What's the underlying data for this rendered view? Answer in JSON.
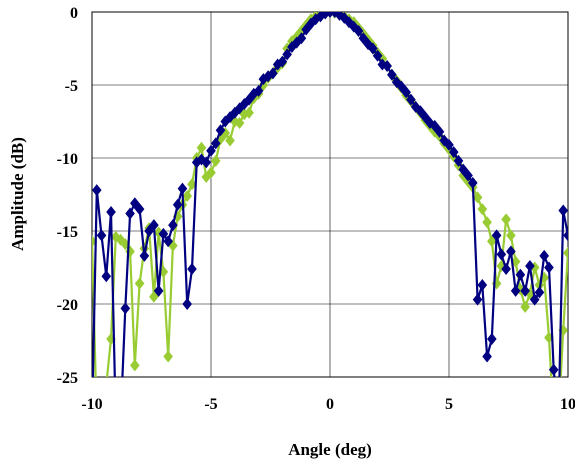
{
  "chart_data": {
    "type": "line",
    "title": "",
    "xlabel": "Angle (deg)",
    "ylabel": "Amplitude (dB)",
    "xlim": [
      -10,
      10
    ],
    "ylim": [
      -25,
      0
    ],
    "x_ticks": [
      -10,
      -5,
      0,
      5,
      10
    ],
    "y_ticks": [
      0,
      -5,
      -10,
      -15,
      -20,
      -25
    ],
    "x_tick_labels": [
      "-10",
      "-5",
      "0",
      "5",
      "10"
    ],
    "y_tick_labels": [
      "0",
      "-5",
      "-10",
      "-15",
      "-20",
      "-25"
    ],
    "grid": true,
    "legend": "none",
    "series": [
      {
        "color": "#99cc33",
        "marker": "diamond",
        "points": [
          [
            -10.0,
            -15.7
          ],
          [
            -9.8,
            -28.0
          ],
          [
            -9.6,
            -28.0
          ],
          [
            -9.4,
            -25.5
          ],
          [
            -9.2,
            -22.4
          ],
          [
            -9.0,
            -15.4
          ],
          [
            -8.8,
            -15.6
          ],
          [
            -8.6,
            -15.9
          ],
          [
            -8.4,
            -16.4
          ],
          [
            -8.2,
            -24.2
          ],
          [
            -8.0,
            -18.6
          ],
          [
            -7.8,
            -16.2
          ],
          [
            -7.6,
            -14.8
          ],
          [
            -7.4,
            -19.5
          ],
          [
            -7.2,
            -15.1
          ],
          [
            -7.0,
            -17.8
          ],
          [
            -6.8,
            -23.6
          ],
          [
            -6.6,
            -16.0
          ],
          [
            -6.4,
            -14.0
          ],
          [
            -6.2,
            -13.2
          ],
          [
            -6.0,
            -12.6
          ],
          [
            -5.8,
            -11.8
          ],
          [
            -5.6,
            -10.0
          ],
          [
            -5.4,
            -9.3
          ],
          [
            -5.2,
            -11.3
          ],
          [
            -5.0,
            -11.0
          ],
          [
            -4.8,
            -10.2
          ],
          [
            -4.6,
            -8.7
          ],
          [
            -4.4,
            -8.3
          ],
          [
            -4.2,
            -8.8
          ],
          [
            -4.0,
            -7.5
          ],
          [
            -3.8,
            -7.6
          ],
          [
            -3.6,
            -7.0
          ],
          [
            -3.4,
            -6.9
          ],
          [
            -3.2,
            -5.9
          ],
          [
            -3.0,
            -5.6
          ],
          [
            -2.8,
            -5.0
          ],
          [
            -2.6,
            -4.5
          ],
          [
            -2.4,
            -4.2
          ],
          [
            -2.2,
            -3.8
          ],
          [
            -2.0,
            -3.5
          ],
          [
            -1.8,
            -2.5
          ],
          [
            -1.6,
            -2.0
          ],
          [
            -1.4,
            -1.7
          ],
          [
            -1.2,
            -1.3
          ],
          [
            -1.0,
            -0.9
          ],
          [
            -0.8,
            -0.5
          ],
          [
            -0.6,
            -0.3
          ],
          [
            -0.4,
            -0.2
          ],
          [
            -0.2,
            -0.05
          ],
          [
            0.0,
            0.0
          ],
          [
            0.2,
            -0.05
          ],
          [
            0.4,
            -0.2
          ],
          [
            0.6,
            -0.3
          ],
          [
            0.8,
            -0.5
          ],
          [
            1.0,
            -0.7
          ],
          [
            1.2,
            -1.1
          ],
          [
            1.4,
            -1.5
          ],
          [
            1.6,
            -1.9
          ],
          [
            1.8,
            -2.3
          ],
          [
            2.0,
            -2.8
          ],
          [
            2.2,
            -3.2
          ],
          [
            2.4,
            -3.7
          ],
          [
            2.6,
            -4.3
          ],
          [
            2.8,
            -4.7
          ],
          [
            3.0,
            -5.2
          ],
          [
            3.2,
            -5.7
          ],
          [
            3.4,
            -6.1
          ],
          [
            3.6,
            -6.5
          ],
          [
            3.8,
            -6.9
          ],
          [
            4.0,
            -7.4
          ],
          [
            4.2,
            -7.8
          ],
          [
            4.4,
            -8.2
          ],
          [
            4.6,
            -8.5
          ],
          [
            4.8,
            -9.0
          ],
          [
            5.0,
            -9.4
          ],
          [
            5.2,
            -9.9
          ],
          [
            5.4,
            -10.5
          ],
          [
            5.6,
            -11.2
          ],
          [
            5.8,
            -11.6
          ],
          [
            6.0,
            -12.0
          ],
          [
            6.2,
            -12.7
          ],
          [
            6.4,
            -13.5
          ],
          [
            6.6,
            -14.4
          ],
          [
            6.8,
            -15.7
          ],
          [
            7.0,
            -18.6
          ],
          [
            7.2,
            -17.4
          ],
          [
            7.4,
            -14.2
          ],
          [
            7.6,
            -15.3
          ],
          [
            7.8,
            -17.1
          ],
          [
            8.0,
            -19.0
          ],
          [
            8.2,
            -20.2
          ],
          [
            8.4,
            -19.3
          ],
          [
            8.6,
            -17.5
          ],
          [
            8.8,
            -18.7
          ],
          [
            9.0,
            -18.2
          ],
          [
            9.2,
            -22.3
          ],
          [
            9.4,
            -28.0
          ],
          [
            9.6,
            -28.0
          ],
          [
            9.8,
            -21.8
          ],
          [
            10.0,
            -16.5
          ]
        ]
      },
      {
        "color": "#000080",
        "marker": "diamond",
        "points": [
          [
            -10.0,
            -28.0
          ],
          [
            -9.8,
            -12.2
          ],
          [
            -9.6,
            -15.3
          ],
          [
            -9.4,
            -18.1
          ],
          [
            -9.2,
            -13.7
          ],
          [
            -9.0,
            -28.0
          ],
          [
            -8.8,
            -28.0
          ],
          [
            -8.6,
            -20.3
          ],
          [
            -8.4,
            -13.8
          ],
          [
            -8.2,
            -13.1
          ],
          [
            -8.0,
            -13.5
          ],
          [
            -7.8,
            -16.7
          ],
          [
            -7.6,
            -15.0
          ],
          [
            -7.4,
            -14.6
          ],
          [
            -7.2,
            -19.1
          ],
          [
            -7.0,
            -15.2
          ],
          [
            -6.8,
            -15.7
          ],
          [
            -6.6,
            -14.6
          ],
          [
            -6.4,
            -13.2
          ],
          [
            -6.2,
            -12.1
          ],
          [
            -6.0,
            -20.0
          ],
          [
            -5.8,
            -17.6
          ],
          [
            -5.6,
            -10.3
          ],
          [
            -5.4,
            -10.1
          ],
          [
            -5.2,
            -10.3
          ],
          [
            -5.0,
            -9.5
          ],
          [
            -4.8,
            -9.0
          ],
          [
            -4.6,
            -8.1
          ],
          [
            -4.4,
            -7.5
          ],
          [
            -4.2,
            -7.2
          ],
          [
            -4.0,
            -6.9
          ],
          [
            -3.8,
            -6.6
          ],
          [
            -3.6,
            -6.3
          ],
          [
            -3.4,
            -6.0
          ],
          [
            -3.2,
            -5.6
          ],
          [
            -3.0,
            -5.4
          ],
          [
            -2.8,
            -4.6
          ],
          [
            -2.6,
            -4.4
          ],
          [
            -2.4,
            -4.2
          ],
          [
            -2.2,
            -3.6
          ],
          [
            -2.0,
            -3.4
          ],
          [
            -1.8,
            -2.9
          ],
          [
            -1.6,
            -2.4
          ],
          [
            -1.4,
            -2.1
          ],
          [
            -1.2,
            -1.8
          ],
          [
            -1.0,
            -1.2
          ],
          [
            -0.8,
            -0.8
          ],
          [
            -0.6,
            -0.5
          ],
          [
            -0.4,
            -0.3
          ],
          [
            -0.2,
            -0.1
          ],
          [
            0.0,
            0.0
          ],
          [
            0.2,
            0.0
          ],
          [
            0.4,
            -0.2
          ],
          [
            0.6,
            -0.4
          ],
          [
            0.8,
            -0.7
          ],
          [
            1.0,
            -1.0
          ],
          [
            1.2,
            -1.3
          ],
          [
            1.4,
            -1.8
          ],
          [
            1.6,
            -2.2
          ],
          [
            1.8,
            -2.5
          ],
          [
            2.0,
            -3.0
          ],
          [
            2.2,
            -3.6
          ],
          [
            2.4,
            -3.7
          ],
          [
            2.6,
            -4.3
          ],
          [
            2.8,
            -4.8
          ],
          [
            3.0,
            -5.1
          ],
          [
            3.2,
            -5.5
          ],
          [
            3.4,
            -6.0
          ],
          [
            3.6,
            -6.5
          ],
          [
            3.8,
            -6.8
          ],
          [
            4.0,
            -7.2
          ],
          [
            4.2,
            -7.6
          ],
          [
            4.4,
            -7.8
          ],
          [
            4.6,
            -8.2
          ],
          [
            4.8,
            -8.8
          ],
          [
            5.0,
            -9.1
          ],
          [
            5.2,
            -9.6
          ],
          [
            5.4,
            -10.2
          ],
          [
            5.6,
            -10.8
          ],
          [
            5.8,
            -11.2
          ],
          [
            6.0,
            -11.7
          ],
          [
            6.2,
            -19.7
          ],
          [
            6.4,
            -18.7
          ],
          [
            6.6,
            -23.6
          ],
          [
            6.8,
            -22.4
          ],
          [
            7.0,
            -15.3
          ],
          [
            7.2,
            -16.6
          ],
          [
            7.4,
            -17.6
          ],
          [
            7.6,
            -16.4
          ],
          [
            7.8,
            -19.1
          ],
          [
            8.0,
            -18.0
          ],
          [
            8.2,
            -19.1
          ],
          [
            8.4,
            -17.4
          ],
          [
            8.6,
            -19.7
          ],
          [
            8.8,
            -19.2
          ],
          [
            9.0,
            -16.7
          ],
          [
            9.2,
            -17.5
          ],
          [
            9.4,
            -24.5
          ],
          [
            9.6,
            -28.0
          ],
          [
            9.8,
            -13.6
          ],
          [
            10.0,
            -15.3
          ]
        ]
      }
    ]
  }
}
